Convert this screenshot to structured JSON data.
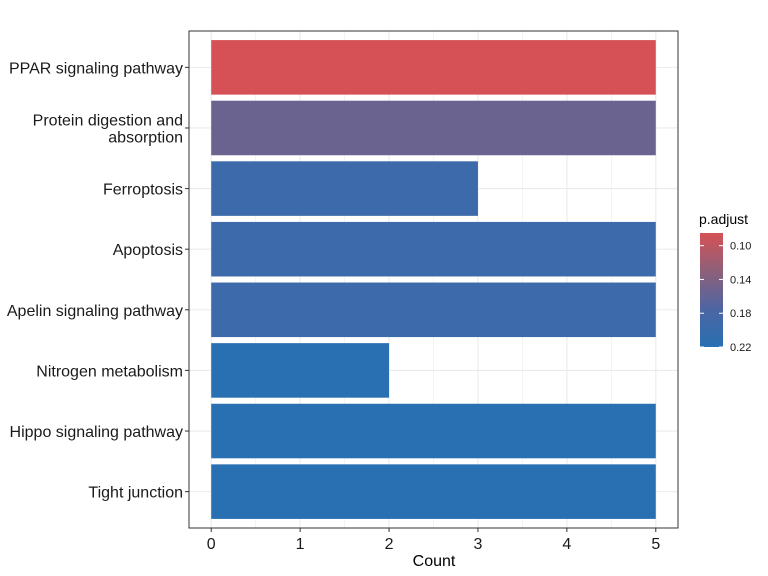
{
  "chart_data": {
    "type": "bar",
    "orientation": "horizontal",
    "categories": [
      "PPAR signaling pathway",
      "Protein digestion and absorption",
      "Ferroptosis",
      "Apoptosis",
      "Apelin signaling pathway",
      "Nitrogen metabolism",
      "Hippo signaling pathway",
      "Tight junction"
    ],
    "category_lines": [
      [
        "PPAR signaling pathway"
      ],
      [
        "Protein digestion and",
        "absorption"
      ],
      [
        "Ferroptosis"
      ],
      [
        "Apoptosis"
      ],
      [
        "Apelin signaling pathway"
      ],
      [
        "Nitrogen metabolism"
      ],
      [
        "Hippo signaling pathway"
      ],
      [
        "Tight junction"
      ]
    ],
    "values": [
      5,
      5,
      3,
      5,
      5,
      2,
      5,
      5
    ],
    "p_adjust": [
      0.085,
      0.155,
      0.195,
      0.195,
      0.195,
      0.22,
      0.22,
      0.22
    ],
    "xlabel": "Count",
    "ylabel": "",
    "xlim": [
      -0.25,
      5.25
    ],
    "xticks": [
      0,
      1,
      2,
      3,
      4,
      5
    ],
    "grid": true,
    "legend": {
      "title": "p.adjust",
      "placement": "right",
      "min": 0.085,
      "max": 0.22,
      "ticks": [
        0.1,
        0.14,
        0.18,
        0.22
      ],
      "tick_labels": [
        "0.10",
        "0.14",
        "0.18",
        "0.22"
      ],
      "color_low": "#d65156",
      "color_high": "#2870b2"
    },
    "colors": {
      "bar_gradient": [
        "#d65156",
        "#8e6079",
        "#4e65a3",
        "#2870b2"
      ]
    }
  }
}
